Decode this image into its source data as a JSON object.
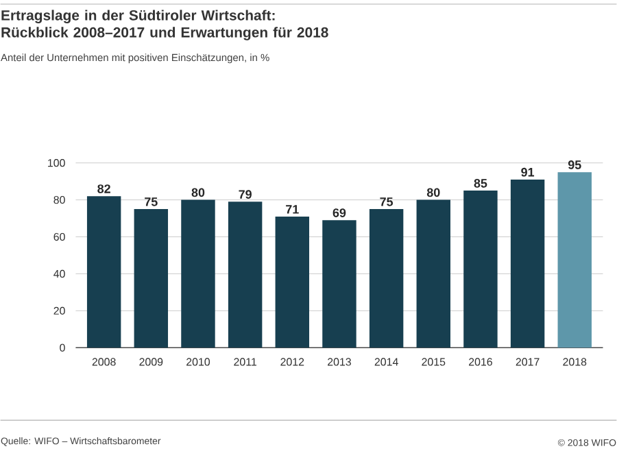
{
  "chart_data": {
    "type": "bar",
    "title": "Ertragslage in der Südtiroler Wirtschaft:\nRückblick 2008–2017 und Erwartungen für 2018",
    "subtitle": "Anteil der Unternehmen mit positiven Einschätzungen, in %",
    "categories": [
      "2008",
      "2009",
      "2010",
      "2011",
      "2012",
      "2013",
      "2014",
      "2015",
      "2016",
      "2017",
      "2018"
    ],
    "values": [
      82,
      75,
      80,
      79,
      71,
      69,
      75,
      80,
      85,
      91,
      95
    ],
    "colors": [
      "#173f50",
      "#173f50",
      "#173f50",
      "#173f50",
      "#173f50",
      "#173f50",
      "#173f50",
      "#173f50",
      "#173f50",
      "#173f50",
      "#5e97aa"
    ],
    "ylim": [
      0,
      100
    ],
    "yticks": [
      0,
      20,
      40,
      60,
      80,
      100
    ],
    "grid": "y",
    "data_labels": true,
    "annotations": [
      "Quelle: WIFO – Wirtschaftsbarometer",
      "© 2018 WIFO"
    ]
  }
}
